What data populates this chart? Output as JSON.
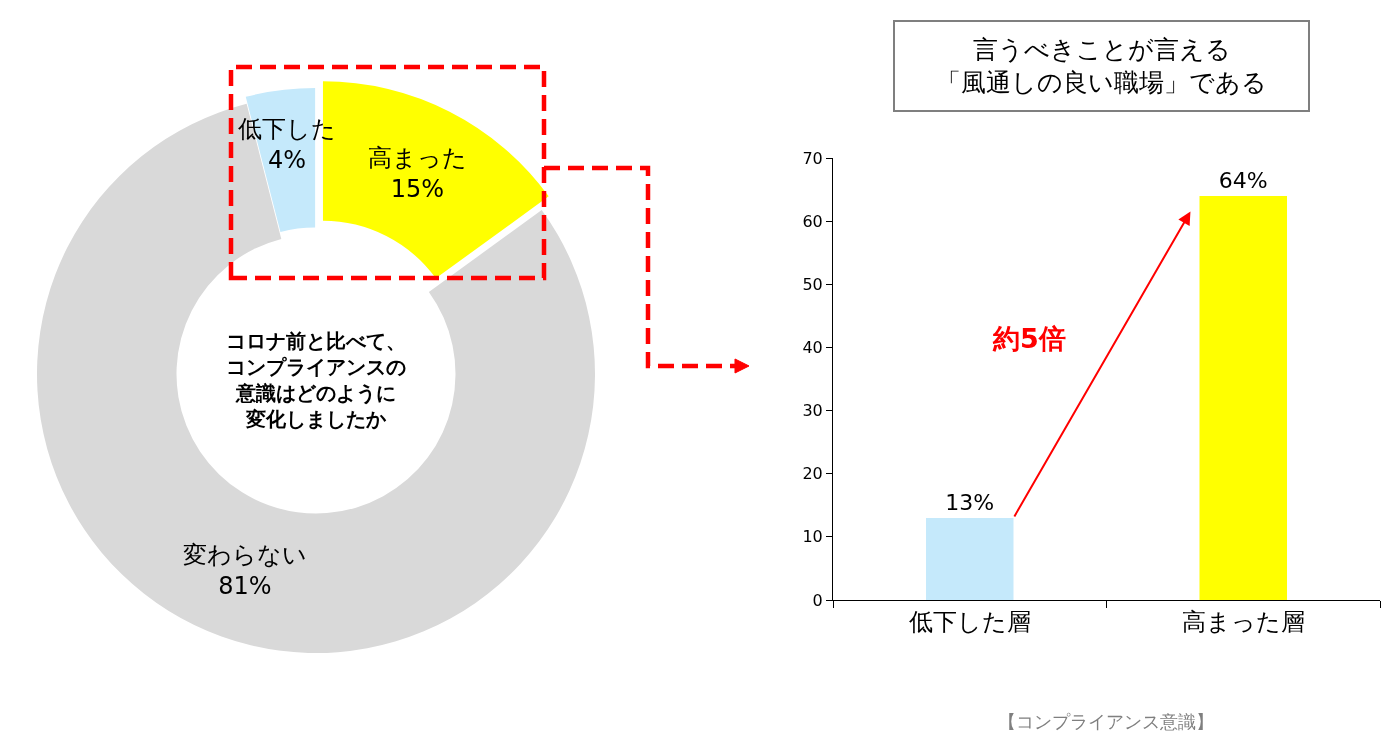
{
  "chart_data": [
    {
      "type": "donut",
      "title": "コロナ前と比べて、コンプライアンスの意識はどのように変化しましたか",
      "categories": [
        "高まった",
        "変わらない",
        "低下した"
      ],
      "values": [
        15,
        81,
        4
      ],
      "value_labels": [
        "15%",
        "81%",
        "4%"
      ],
      "colors": [
        "#ffff00",
        "#d9d9d9",
        "#c5e9fb"
      ]
    },
    {
      "type": "bar",
      "title": "言うべきことが言える「風通しの良い職場」である",
      "categories": [
        "低下した層",
        "高まった層"
      ],
      "values": [
        13,
        64
      ],
      "value_labels": [
        "13%",
        "64%"
      ],
      "colors": [
        "#c5e9fb",
        "#ffff00"
      ],
      "ylim": [
        0,
        70
      ],
      "yticks": [
        0,
        10,
        20,
        30,
        40,
        50,
        60,
        70
      ],
      "grid": false,
      "annotations": [
        "約5倍",
        "【コンプライアンス意識】"
      ]
    }
  ]
}
